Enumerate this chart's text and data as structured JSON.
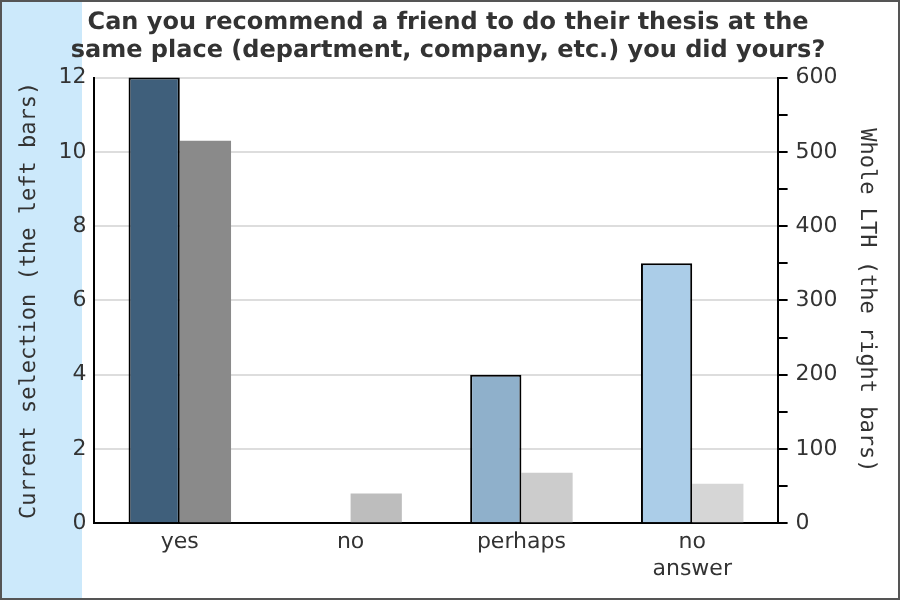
{
  "chart_data": {
    "type": "bar",
    "title": "Can you recommend a friend to do their thesis at the same place (department, company, etc.) you did yours?",
    "categories": [
      "yes",
      "no",
      "perhaps",
      "no answer"
    ],
    "series": [
      {
        "values": [
          12,
          0,
          4,
          7
        ],
        "colors": [
          "#3f5f7b",
          "#7f9fbf",
          "#8fb0cb",
          "#abcde8"
        ],
        "axis": "y"
      },
      {
        "values": [
          515,
          40,
          68,
          53
        ],
        "colors": [
          "#8a8a8a",
          "#bdbdbd",
          "#cccccc",
          "#d6d6d6"
        ],
        "axis": "y2"
      }
    ],
    "ylabel": "Current selection (the left bars)",
    "y2label": "Whole LTH (the right bars)",
    "ylim": [
      0,
      12
    ],
    "yticks": [
      0,
      2,
      4,
      6,
      8,
      10,
      12
    ],
    "y2lim": [
      0,
      600
    ],
    "y2ticks": [
      0,
      {
        "value": 50,
        "label": null
      },
      100,
      {
        "value": 150,
        "label": null
      },
      200,
      {
        "value": 250,
        "label": null
      },
      300,
      {
        "value": 350,
        "label": null
      },
      400,
      {
        "value": 450,
        "label": null
      },
      500,
      {
        "value": 550,
        "label": null
      },
      600
    ],
    "grid": "y"
  }
}
